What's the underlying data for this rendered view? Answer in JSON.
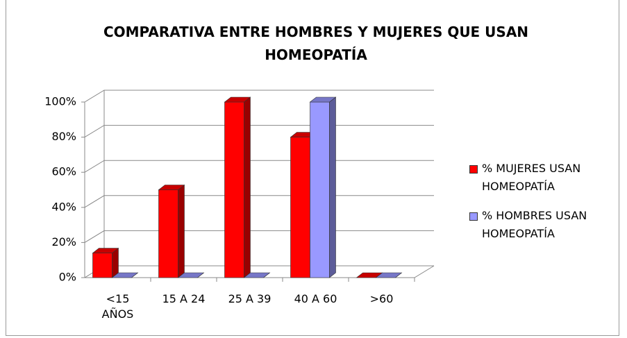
{
  "chart_data": {
    "type": "bar3d",
    "title": "COMPARATIVA ENTRE HOMBRES Y MUJERES QUE USAN HOMEOPATÍA",
    "categories": [
      "<15 AÑOS",
      "15 A 24",
      "25 A 39",
      "40 A 60",
      ">60"
    ],
    "series": [
      {
        "name": "% MUJERES USAN HOMEOPATÍA",
        "color": "#ff0000",
        "values": [
          14,
          50,
          100,
          80,
          0
        ]
      },
      {
        "name": "% HOMBRES USAN HOMEOPATÍA",
        "color": "#9999ff",
        "values": [
          0,
          0,
          0,
          100,
          0
        ]
      }
    ],
    "ylim": [
      0,
      100
    ],
    "yticks": [
      {
        "value": 0,
        "label": "0%"
      },
      {
        "value": 20,
        "label": "20%"
      },
      {
        "value": 40,
        "label": "40%"
      },
      {
        "value": 60,
        "label": "60%"
      },
      {
        "value": 80,
        "label": "80%"
      },
      {
        "value": 100,
        "label": "100%"
      }
    ],
    "grid": true,
    "legend": "right"
  }
}
